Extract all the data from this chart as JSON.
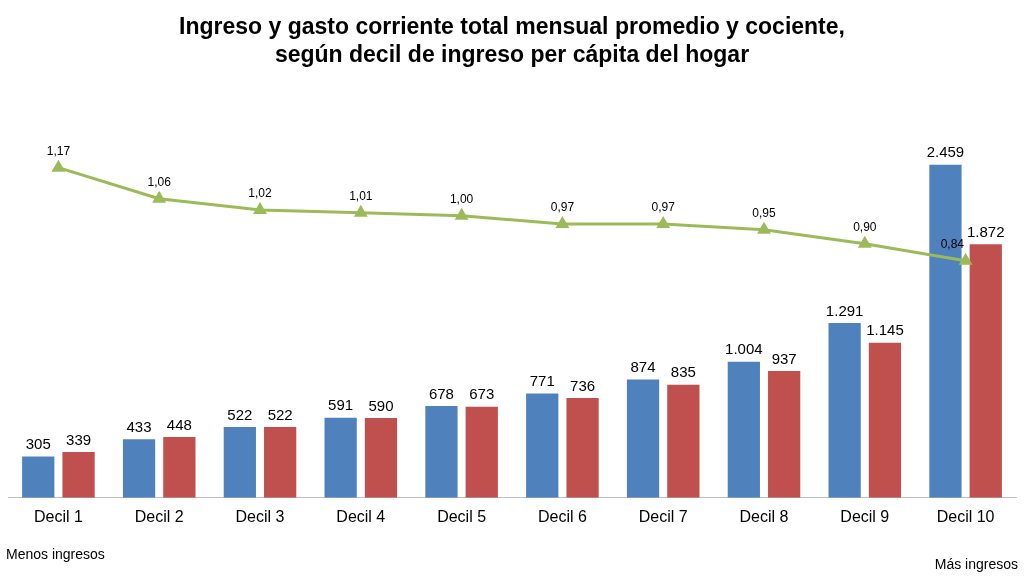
{
  "chart_data": {
    "type": "bar",
    "title": "Ingreso y gasto corriente total mensual promedio y cociente, según decil de ingreso per cápita del hogar",
    "categories": [
      "Decil 1",
      "Decil 2",
      "Decil 3",
      "Decil 4",
      "Decil 5",
      "Decil 6",
      "Decil 7",
      "Decil 8",
      "Decil 9",
      "Decil 10"
    ],
    "series": [
      {
        "color": "#4f81bd",
        "values": [
          305,
          433,
          522,
          591,
          678,
          771,
          874,
          1004,
          1291,
          2459
        ],
        "value_labels": [
          "305",
          "433",
          "522",
          "591",
          "678",
          "771",
          "874",
          "1.004",
          "1.291",
          "2.459"
        ]
      },
      {
        "color": "#c0504d",
        "values": [
          339,
          448,
          522,
          590,
          673,
          736,
          835,
          937,
          1145,
          1872
        ],
        "value_labels": [
          "339",
          "448",
          "522",
          "590",
          "673",
          "736",
          "835",
          "937",
          "1.145",
          "1.872"
        ]
      },
      {
        "type": "line",
        "axis": "y2",
        "color": "#9bbb59",
        "marker": "triangle",
        "values": [
          1.17,
          1.06,
          1.02,
          1.01,
          1.0,
          0.97,
          0.97,
          0.95,
          0.9,
          0.84
        ],
        "value_labels": [
          "1,17",
          "1,06",
          "1,02",
          "1,01",
          "1,00",
          "0,97",
          "0,97",
          "0,95",
          "0,90",
          "0,84"
        ]
      }
    ],
    "tick_labels": "x",
    "grid": false,
    "legend": false,
    "annotations": [
      "Menos ingresos",
      "Más ingresos"
    ]
  }
}
